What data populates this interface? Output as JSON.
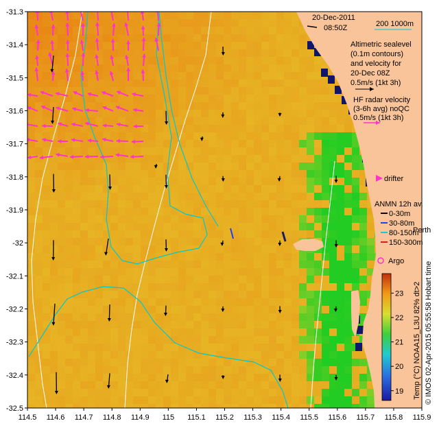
{
  "header": {
    "date": "20-Dec-2011",
    "time": "08:50Z",
    "scale_label": "200  1000m"
  },
  "notes": {
    "altimetric": [
      "Altimetric sealevel",
      "(0.1m contours)",
      "and velocity for",
      "20-Dec 08Z",
      "0.5m/s (1kt 3h)"
    ],
    "hf_radar": [
      "HF radar velocity",
      "(3-6h avg) noQC",
      "0.5m/s (1kt 3h)"
    ],
    "drifter": "drifter",
    "anmn_title": "ANMN 12h av.",
    "anmn_depths": [
      "0-30m",
      "30-80m",
      "80-150m",
      "150-300m"
    ],
    "anmn_colors": [
      "#000000",
      "#1f3cff",
      "#18c6d8",
      "#d22020"
    ],
    "perth_label": "Perth",
    "argo_label": "Argo",
    "credit": "© IMOS 02-Apr-2015 05:55:58 Hobart time"
  },
  "colorbar": {
    "label": "Temp (°C) NOAA15_L3U 82% dt>2",
    "ticks": [
      "23",
      "22",
      "21",
      "20",
      "19"
    ]
  },
  "map": {
    "type": "heatmap",
    "x_ticks": [
      "114.5",
      "114.6",
      "114.7",
      "114.8",
      "114.9",
      "115",
      "115.1",
      "115.2",
      "115.3",
      "115.4",
      "115.5",
      "115.6",
      "115.7",
      "115.8",
      "115.9"
    ],
    "y_ticks": [
      "-31.3",
      "-31.4",
      "-31.5",
      "-31.6",
      "-31.7",
      "-31.8",
      "-31.9",
      "-32",
      "-32.1",
      "-32.2",
      "-32.3",
      "-32.4",
      "-32.5"
    ],
    "xlim": [
      114.5,
      115.9
    ],
    "ylim": [
      -32.5,
      -31.3
    ],
    "colors": {
      "land": "#f9c49a",
      "hf_vector": "#ff33cc",
      "contour": "#00c8d0",
      "bathy": "#ffffff",
      "sst_cool": "#22cc22",
      "sst_warm": "#e97a10",
      "sst_mid": "#e6d02e"
    }
  }
}
